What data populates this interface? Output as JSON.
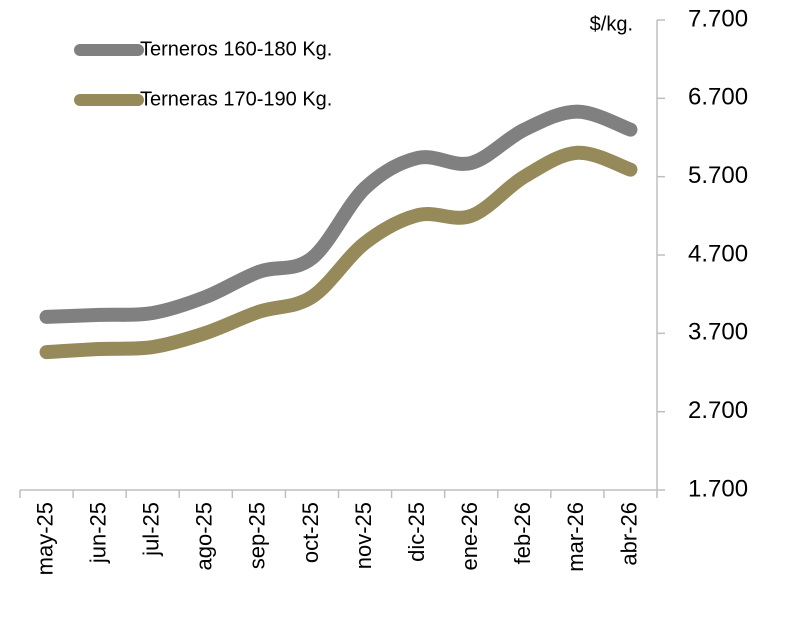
{
  "chart_data": {
    "type": "line",
    "y_axis_label": "$/kg.",
    "categories": [
      "may-25",
      "jun-25",
      "jul-25",
      "ago-25",
      "sep-25",
      "oct-25",
      "nov-25",
      "dic-25",
      "ene-26",
      "feb-26",
      "mar-26",
      "abr-26"
    ],
    "series": [
      {
        "name": "Terneros 160-180 Kg.",
        "color": "#808080",
        "values": [
          3910,
          3935,
          3960,
          4165,
          4485,
          4660,
          5555,
          5940,
          5875,
          6300,
          6530,
          6300
        ]
      },
      {
        "name": "Terneras 170-190 Kg.",
        "color": "#968a5a",
        "values": [
          3460,
          3500,
          3525,
          3705,
          3975,
          4165,
          4855,
          5210,
          5200,
          5700,
          6005,
          5790
        ]
      }
    ],
    "ylim": [
      1700,
      7700
    ],
    "yticks": [
      {
        "value": 1700,
        "label": "1.700"
      },
      {
        "value": 2700,
        "label": "2.700"
      },
      {
        "value": 3700,
        "label": "3.700"
      },
      {
        "value": 4700,
        "label": "4.700"
      },
      {
        "value": 5700,
        "label": "5.700"
      },
      {
        "value": 6700,
        "label": "6.700"
      },
      {
        "value": 7700,
        "label": "7.700"
      }
    ],
    "legend": "top-left"
  }
}
